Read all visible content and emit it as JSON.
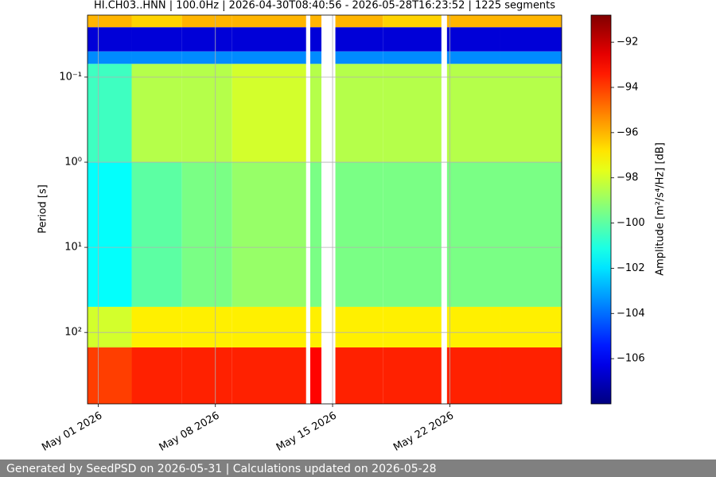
{
  "chart_data": {
    "type": "spectrogram",
    "title": "HI.CH03..HNN | 100.0Hz | 2026-04-30T08:40:56 - 2026-05-28T16:23:52 | 1225 segments",
    "ylabel": "Period [s]",
    "colorbar_label": "Amplitude [m²/s⁴/Hz] [dB]",
    "log_y": true,
    "y_inverted": true,
    "grid": true,
    "colormap": "jet",
    "xlim": [
      "2026-04-30T08:40:56",
      "2026-05-28T16:23:52"
    ],
    "xticks": [
      {
        "value": "2026-05-01T00:00:00",
        "label": "May 01 2026"
      },
      {
        "value": "2026-05-08T00:00:00",
        "label": "May 08 2026"
      },
      {
        "value": "2026-05-15T00:00:00",
        "label": "May 15 2026"
      },
      {
        "value": "2026-05-22T00:00:00",
        "label": "May 22 2026"
      }
    ],
    "ylim": [
      0.0187,
      690
    ],
    "yticks": [
      {
        "value": 0.1,
        "label": "10⁻¹"
      },
      {
        "value": 1,
        "label": "10⁰"
      },
      {
        "value": 10,
        "label": "10¹"
      },
      {
        "value": 100,
        "label": "10²"
      }
    ],
    "clim": [
      -108,
      -90.8
    ],
    "cticks": [
      {
        "value": -92,
        "label": "−92"
      },
      {
        "value": -94,
        "label": "−94"
      },
      {
        "value": -96,
        "label": "−96"
      },
      {
        "value": -98,
        "label": "−98"
      },
      {
        "value": -100,
        "label": "−100"
      },
      {
        "value": -102,
        "label": "−102"
      },
      {
        "value": -104,
        "label": "−104"
      },
      {
        "value": -106,
        "label": "−106"
      }
    ],
    "x_edges": [
      "2026-04-30T08:40:56",
      "2026-05-03T00:00:00",
      "2026-05-06T00:00:00",
      "2026-05-09T00:00:00",
      "2026-05-13T10:00:00",
      "2026-05-13T16:00:00",
      "2026-05-14T08:00:00",
      "2026-05-15T04:00:00",
      "2026-05-18T00:00:00",
      "2026-05-21T12:00:00",
      "2026-05-21T20:00:00",
      "2026-05-25T00:00:00",
      "2026-05-28T16:23:52"
    ],
    "y_edges": [
      0.0187,
      0.026,
      0.05,
      0.07,
      1,
      50,
      150,
      690
    ],
    "values": [
      [
        -96,
        -96.5,
        -96,
        -96,
        null,
        -96,
        null,
        -96,
        -96.5,
        null,
        -96,
        -96
      ],
      [
        -106.5,
        -106.5,
        -106.5,
        -106.5,
        null,
        -106.5,
        null,
        -106.5,
        -106.5,
        null,
        -106.5,
        -106.5
      ],
      [
        -103.5,
        -103.5,
        -103.5,
        -103.5,
        null,
        -103.5,
        null,
        -103.5,
        -103.5,
        null,
        -103.5,
        -103.5
      ],
      [
        -100.5,
        -98.5,
        -98.5,
        -98,
        null,
        -98.5,
        null,
        -98.5,
        -98.5,
        null,
        -98.5,
        -98.5
      ],
      [
        -101.5,
        -100,
        -99.5,
        -99,
        null,
        -99.5,
        null,
        -99.5,
        -99.5,
        null,
        -99.5,
        -99.5
      ],
      [
        -98,
        -97,
        -97,
        -97,
        null,
        -97,
        null,
        -97,
        -97,
        null,
        -97,
        -97
      ],
      [
        -94,
        -93.5,
        -93.5,
        -93.5,
        null,
        -93,
        null,
        -93.5,
        -93.5,
        null,
        -93.5,
        -93.5
      ]
    ]
  },
  "footer": "Generated by SeedPSD on 2026-05-31 | Calculations updated on 2026-05-28"
}
